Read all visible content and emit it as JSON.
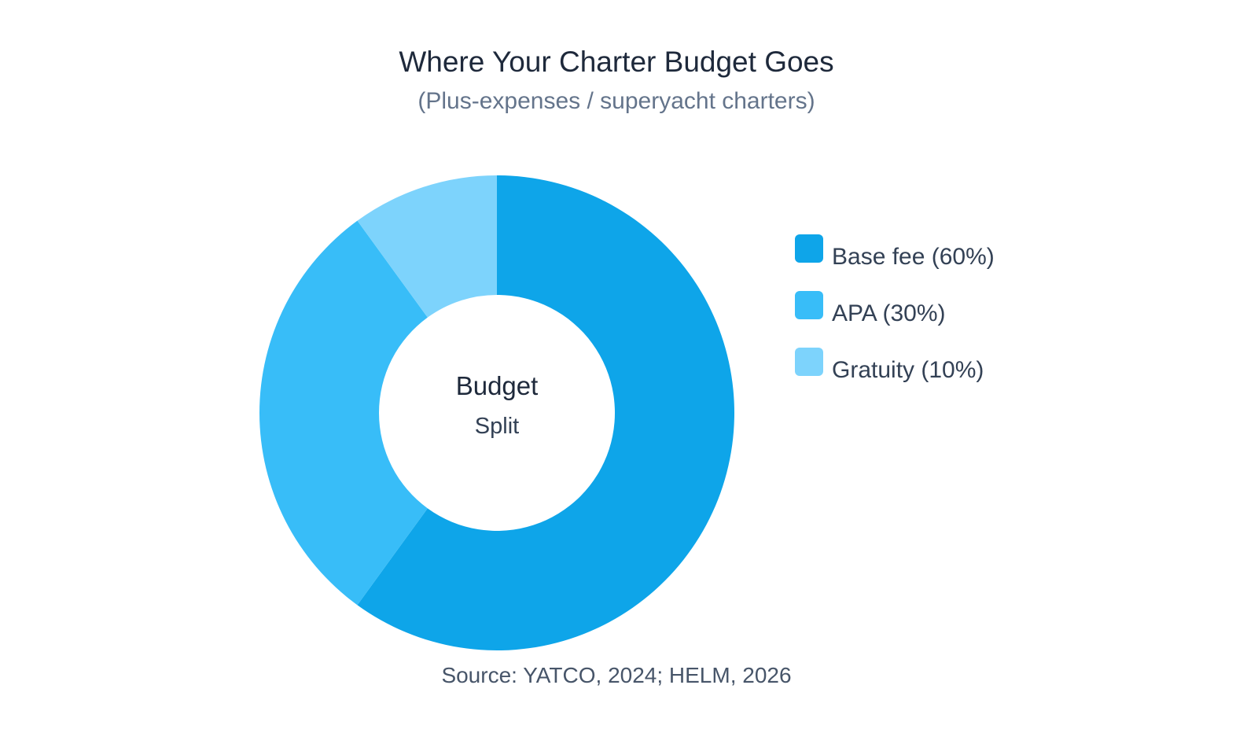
{
  "chart_data": {
    "type": "pie",
    "variant": "donut",
    "title": "Where Your Charter Budget Goes",
    "subtitle": "(Plus-expenses / superyacht charters)",
    "center_label": {
      "line1": "Budget",
      "line2": "Split"
    },
    "categories": [
      "Base fee",
      "APA",
      "Gratuity"
    ],
    "values": [
      60,
      30,
      10
    ],
    "colors": [
      "#0ea5e9",
      "#38bdf8",
      "#7dd3fc"
    ],
    "legend": {
      "position": "right",
      "entries": [
        "Base fee (60%)",
        "APA (30%)",
        "Gratuity (10%)"
      ]
    },
    "source": "Source: YATCO, 2024; HELM, 2026"
  }
}
